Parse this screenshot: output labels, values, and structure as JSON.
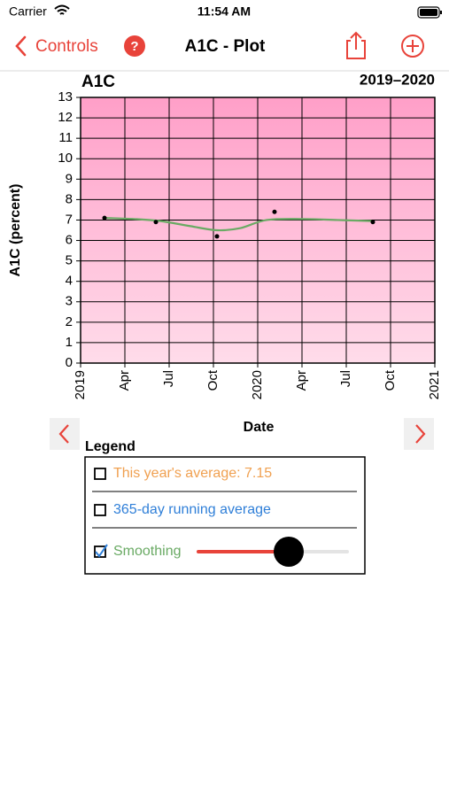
{
  "status_bar": {
    "carrier": "Carrier",
    "time": "11:54 AM"
  },
  "nav": {
    "back": "Controls",
    "help": "?",
    "title": "A1C - Plot"
  },
  "chart_data": {
    "type": "scatter",
    "title": "A1C",
    "subtitle": "2019–2020",
    "x_label": "Date",
    "y_label": "A1C (percent)",
    "x": [
      2019.135,
      2019.425,
      2019.77,
      2020.095,
      2020.65
    ],
    "values": [
      7.1,
      6.9,
      6.2,
      7.4,
      6.9
    ],
    "color": "#000000",
    "smoothing": {
      "x": [
        2019.135,
        2019.3,
        2019.45,
        2019.62,
        2019.77,
        2019.9,
        2020.05,
        2020.25,
        2020.45,
        2020.65
      ],
      "values": [
        7.1,
        7.05,
        6.95,
        6.7,
        6.5,
        6.6,
        7.0,
        7.05,
        7.0,
        6.95
      ],
      "color": "#6aaa64"
    },
    "xlim": [
      2019,
      2021
    ],
    "xticks": [
      {
        "value": 2019,
        "label": "2019"
      },
      {
        "value": 2019.25,
        "label": "Apr"
      },
      {
        "value": 2019.5,
        "label": "Jul"
      },
      {
        "value": 2019.75,
        "label": "Oct"
      },
      {
        "value": 2020,
        "label": "2020"
      },
      {
        "value": 2020.25,
        "label": "Apr"
      },
      {
        "value": 2020.5,
        "label": "Jul"
      },
      {
        "value": 2020.75,
        "label": "Oct"
      },
      {
        "value": 2021,
        "label": "2021"
      }
    ],
    "ylim": [
      0,
      13
    ],
    "yticks": [
      0,
      1,
      2,
      3,
      4,
      5,
      6,
      7,
      8,
      9,
      10,
      11,
      12,
      13
    ],
    "grid": true
  },
  "legend": {
    "title": "Legend",
    "items": [
      {
        "label": "This year's average: 7.15",
        "color": "#f0a050",
        "checked": false
      },
      {
        "label": "365-day running average",
        "color": "#2f7fd8",
        "checked": false
      },
      {
        "label": "Smoothing",
        "color": "#6aaa64",
        "checked": true
      }
    ]
  }
}
